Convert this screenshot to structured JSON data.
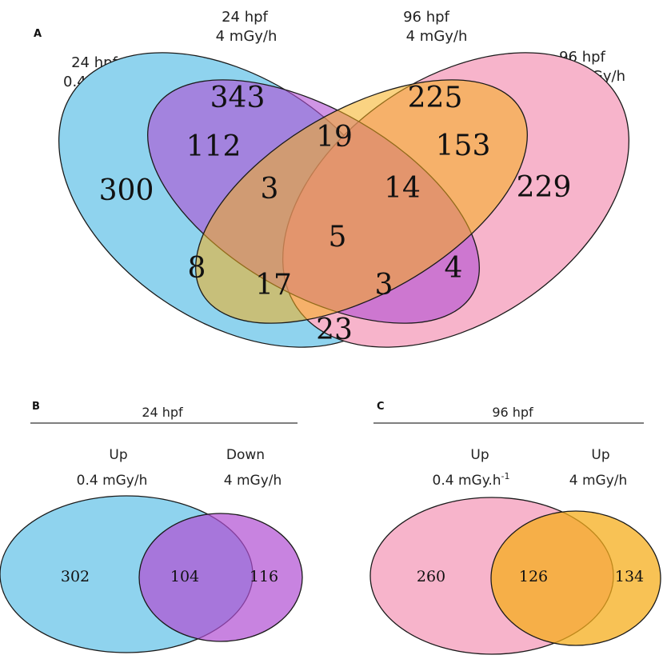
{
  "colors": {
    "blue": "#8fd3ee",
    "purple": "#b04fd3",
    "orange": "#f5ae1c",
    "pink": "#f7b4cb",
    "stroke": "#1a1a1a"
  },
  "panelA": {
    "letter": "A",
    "sets": [
      {
        "line1": "24 hpf",
        "line2": "0.4 mGy/h",
        "color": "#8fd3ee"
      },
      {
        "line1": "24 hpf",
        "line2": "4 mGy/h",
        "color": "#b04fd3"
      },
      {
        "line1": "96 hpf",
        "line2": "4 mGy/h",
        "color": "#f5ae1c"
      },
      {
        "line1": "96 hpf",
        "line2": "0.4 mGy/h",
        "color": "#f7b4cb"
      }
    ],
    "regions": {
      "only_24_04": "300",
      "only_24_4": "343",
      "only_96_4": "225",
      "only_96_04": "229",
      "a_b": "112",
      "b_c": "19",
      "c_d": "153",
      "a_b_c": "3",
      "b_c_d": "14",
      "all": "5",
      "a_c": "8",
      "a_c_d": "17",
      "a_b_d": "3",
      "b_d": "4",
      "a_d": "23"
    }
  },
  "panelB": {
    "letter": "B",
    "header": "24 hpf",
    "left": {
      "line1": "Up",
      "line2": "0.4 mGy/h",
      "color": "#8fd3ee"
    },
    "right": {
      "line1": "Down",
      "line2": "4 mGy/h",
      "color": "#b04fd3"
    },
    "values": {
      "left_only": "302",
      "overlap": "104",
      "right_only": "116"
    }
  },
  "panelC": {
    "letter": "C",
    "header": "96 hpf",
    "left": {
      "line1": "Up",
      "line2": "0.4 mGy.h",
      "line2_sup": "-1",
      "color": "#f7b4cb"
    },
    "right": {
      "line1": "Up",
      "line2": "4 mGy/h",
      "color": "#f5ae1c"
    },
    "values": {
      "left_only": "260",
      "overlap": "126",
      "right_only": "134"
    }
  }
}
